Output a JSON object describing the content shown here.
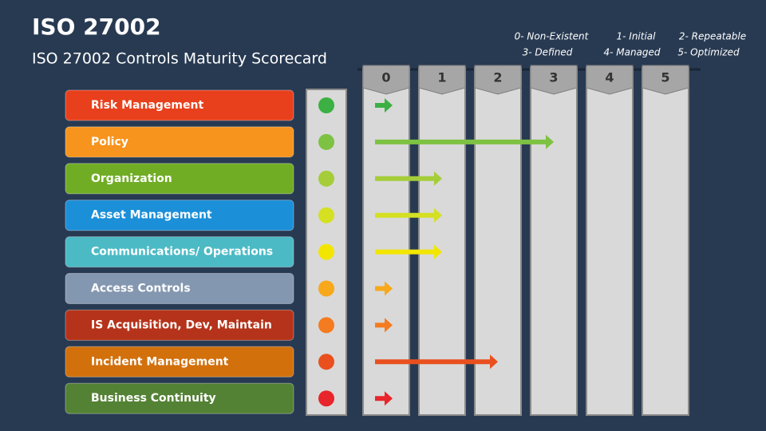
{
  "chart_data": {
    "type": "scorecard",
    "title": "ISO 27002",
    "subtitle": "ISO 27002 Controls Maturity Scorecard",
    "legend": [
      "0- Non-Existent",
      "1- Initial",
      "2- Repeatable",
      "3- Defined",
      "4- Managed",
      "5- Optimized"
    ],
    "categories": [
      "Risk Management",
      "Policy",
      "Organization",
      "Asset Management",
      "Communications/ Operations",
      "Access Controls",
      "IS Acquisition, Dev, Maintain",
      "Incident Management",
      "Business Continuity"
    ],
    "values": [
      0,
      3,
      1,
      1,
      1,
      0,
      0,
      2,
      0
    ],
    "label_colors": [
      "#e8401c",
      "#f7941d",
      "#70ad25",
      "#1b8fd8",
      "#4bbac5",
      "#8497b0",
      "#b5331a",
      "#d2700c",
      "#548235"
    ],
    "colors": [
      "#3cb043",
      "#7dc242",
      "#a5cd39",
      "#d4e021",
      "#f2e600",
      "#f7a81b",
      "#f47b20",
      "#e9501e",
      "#e8252a"
    ],
    "xlim": [
      0,
      5
    ],
    "xticks": [
      0,
      1,
      2,
      3,
      4,
      5
    ]
  }
}
